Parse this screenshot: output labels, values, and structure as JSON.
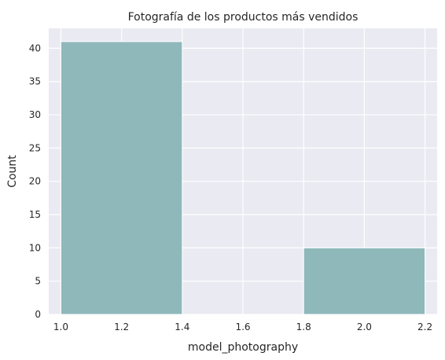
{
  "chart_data": {
    "type": "bar",
    "title": "Fotografía de los productos más vendidos",
    "xlabel": "model_photography",
    "ylabel": "Count",
    "xlim": [
      0.96,
      2.24
    ],
    "ylim": [
      0,
      43
    ],
    "grid": true,
    "xticks": [
      1.0,
      1.2,
      1.4,
      1.6,
      1.8,
      2.0,
      2.2
    ],
    "xtick_labels": [
      "1.0",
      "1.2",
      "1.4",
      "1.6",
      "1.8",
      "2.0",
      "2.2"
    ],
    "yticks": [
      0,
      5,
      10,
      15,
      20,
      25,
      30,
      35,
      40
    ],
    "ytick_labels": [
      "0",
      "5",
      "10",
      "15",
      "20",
      "25",
      "30",
      "35",
      "40"
    ],
    "bins": [
      {
        "x0": 1.0,
        "x1": 1.4,
        "value": 41
      },
      {
        "x0": 1.4,
        "x1": 1.8,
        "value": 0
      },
      {
        "x0": 1.8,
        "x1": 2.2,
        "value": 10
      }
    ],
    "colors": {
      "bar": "#8fb8bb",
      "background": "#eaeaf2",
      "grid": "#ffffff"
    }
  }
}
